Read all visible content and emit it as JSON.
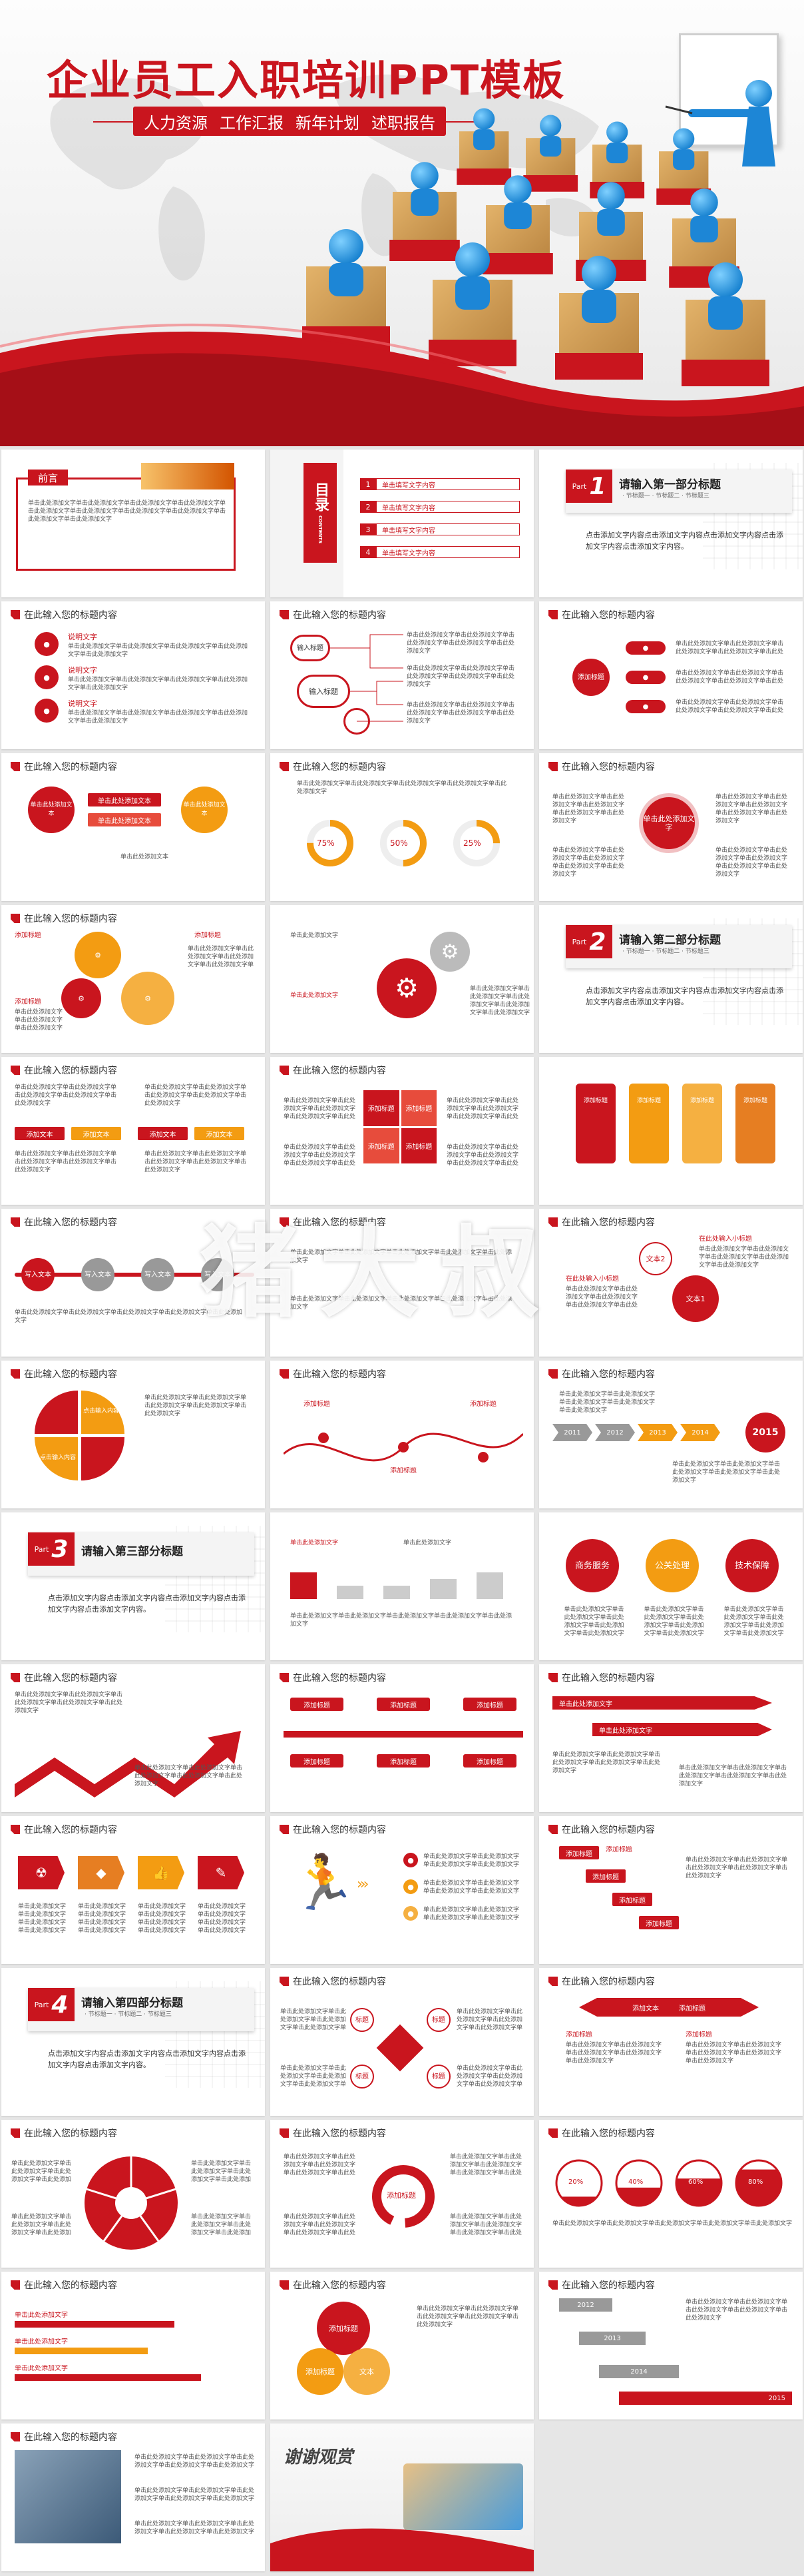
{
  "hero": {
    "title": "企业员工入职培训PPT模板",
    "subtitle_items": [
      "人力资源",
      "工作汇报",
      "新年计划",
      "述职报告"
    ]
  },
  "common": {
    "slide_heading": "在此输入您的标题内容",
    "placeholder_text": "单击此处添加文字单击此处添加文字单击此处添加文字单击此处添加文字单击此处添加文字",
    "add_text": "添加文本",
    "add_title": "添加标题",
    "click_add": "单击此处添加文字",
    "text_here": "文本"
  },
  "foreword": {
    "label": "前言",
    "body": "单击此处添加文字单击此处添加文字单击此处添加文字单击此处添加文字单击此处添加文字单击此处添加文字单击此处添加文字单击此处添加文字单击此处添加文字单击此处添加文字"
  },
  "toc": {
    "label": "目录",
    "sub": "CONTENTS",
    "items": [
      {
        "num": "1",
        "text": "单击填写文字内容"
      },
      {
        "num": "2",
        "text": "单击填写文字内容"
      },
      {
        "num": "3",
        "text": "单击填写文字内容"
      },
      {
        "num": "4",
        "text": "单击填写文字内容"
      }
    ]
  },
  "parts": [
    {
      "num": "1",
      "tag": "Part",
      "title": "请输入第一部分标题",
      "subs": "· 节标题一 · 节标题二 · 节标题三",
      "body": "点击添加文字内容点击添加文字内容点击添加文字内容点击添加文字内容点击添加文字内容。"
    },
    {
      "num": "2",
      "tag": "Part",
      "title": "请输入第二部分标题",
      "subs": "· 节标题一 · 节标题二 · 节标题三",
      "body": "点击添加文字内容点击添加文字内容点击添加文字内容点击添加文字内容点击添加文字内容。"
    },
    {
      "num": "3",
      "tag": "Part",
      "title": "请输入第三部分标题",
      "subs": "",
      "body": "点击添加文字内容点击添加文字内容点击添加文字内容点击添加文字内容点击添加文字内容。"
    },
    {
      "num": "4",
      "tag": "Part",
      "title": "请输入第四部分标题",
      "subs": "· 节标题一 · 节标题二 · 节标题三",
      "body": "点击添加文字内容点击添加文字内容点击添加文字内容点击添加文字内容点击添加文字内容。"
    }
  ],
  "slides": {
    "desc_label": "说明文字",
    "input_title": "输入标题",
    "add_title": "添加标题",
    "percents": [
      "75%",
      "50%",
      "25%"
    ],
    "click_add_short": "单击此处添加文本",
    "input_text": "写入文本",
    "text_one": "文本1",
    "text_two": "文本2",
    "input_small_title": "在此处输入小标题",
    "years": [
      "2011",
      "2012",
      "2013",
      "2014",
      "2015"
    ],
    "biz_circles": [
      "商务服务",
      "公关处理",
      "技术保障"
    ],
    "quarter_labels": [
      "点击输入内容",
      "点击输入内容"
    ],
    "stairs": [
      "添加标题",
      "添加标题",
      "添加标题",
      "添加标题"
    ],
    "cross_labels": [
      "标题",
      "标题",
      "标题",
      "标题"
    ],
    "year_stack": [
      "2012",
      "2013",
      "2014",
      "2015"
    ],
    "donut_pct": [
      "20%",
      "40%",
      "60%",
      "80%"
    ],
    "thanks": "谢谢观赏"
  },
  "watermark": "猪大叔"
}
